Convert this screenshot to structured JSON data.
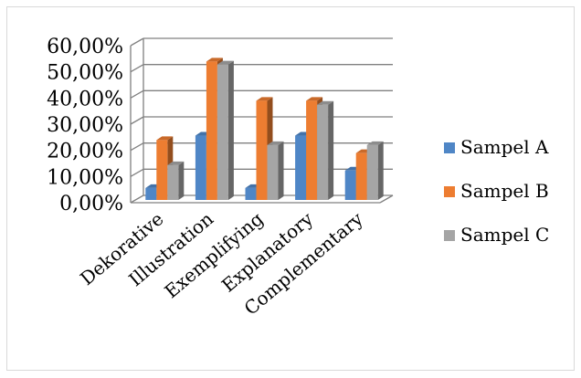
{
  "chart_data": {
    "type": "bar",
    "style": "3d-clustered-column",
    "title": "",
    "xlabel": "",
    "ylabel": "",
    "categories": [
      "Dekorative",
      "Illustration",
      "Exemplifying",
      "Explanatory",
      "Complementary"
    ],
    "series": [
      {
        "name": "Sampel A",
        "color": "#4f86c6",
        "values": [
          6.67,
          26.67,
          6.67,
          26.67,
          13.33
        ]
      },
      {
        "name": "Sampel B",
        "color": "#ed7d31",
        "values": [
          25.0,
          55.0,
          40.0,
          40.0,
          20.0
        ]
      },
      {
        "name": "Sampel C",
        "color": "#a5a5a5",
        "values": [
          15.38,
          53.85,
          23.08,
          38.46,
          23.08
        ]
      }
    ],
    "y_ticks": [
      "0,00%",
      "10,00%",
      "20,00%",
      "30,00%",
      "40,00%",
      "50,00%",
      "60,00%"
    ],
    "ylim": [
      0,
      60
    ],
    "grid": true,
    "legend_position": "right"
  }
}
